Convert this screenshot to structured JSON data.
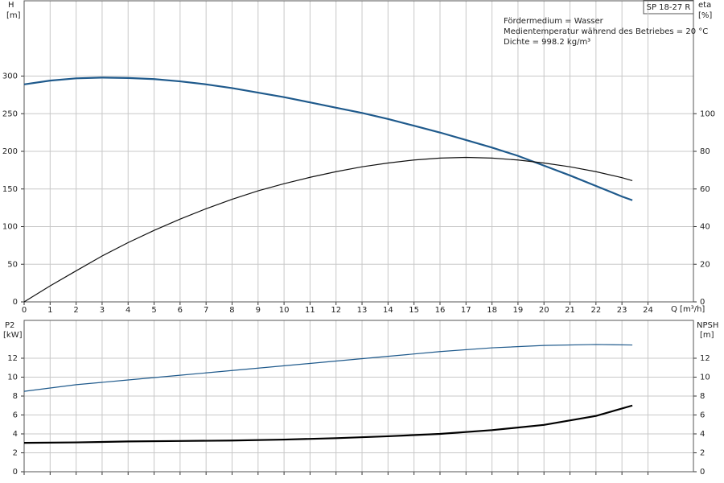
{
  "chart_data": [
    {
      "type": "line",
      "title": "SP 18-27 R",
      "annotations": [
        "Fördermedium = Wasser",
        "Medientemperatur während des Betriebes = 20 °C",
        "Dichte = 998.2 kg/m³"
      ],
      "xlabel": "Q [m³/h]",
      "ylabel": "H",
      "yunit": "[m]",
      "y2label": "eta",
      "y2unit": "[%]",
      "xlim": [
        0,
        25.75
      ],
      "xticks": [
        0,
        1,
        2,
        3,
        4,
        5,
        6,
        7,
        8,
        9,
        10,
        11,
        12,
        13,
        14,
        15,
        16,
        17,
        18,
        19,
        20,
        21,
        22,
        23,
        24
      ],
      "ylim": [
        0,
        400
      ],
      "yticks": [
        0,
        50,
        100,
        150,
        200,
        250,
        300
      ],
      "y2lim": [
        0,
        160
      ],
      "y2ticks": [
        0,
        20,
        40,
        60,
        80,
        100
      ],
      "grid": true,
      "series": [
        {
          "color": "#1f5a8c",
          "width": 2.2,
          "x": [
            0,
            1,
            2,
            3,
            4,
            5,
            6,
            7,
            8,
            9,
            10,
            11,
            12,
            13,
            14,
            15,
            16,
            17,
            18,
            19,
            20,
            21,
            22,
            23,
            23.4
          ],
          "values": [
            289,
            294,
            297,
            298,
            297.5,
            296,
            293,
            289,
            284,
            278,
            272,
            265,
            258,
            251,
            243,
            234,
            225,
            215,
            205,
            194,
            181,
            168,
            154,
            140,
            135
          ]
        },
        {
          "color": "#111111",
          "width": 1.2,
          "axis": "y2",
          "x": [
            0,
            1,
            2,
            3,
            4,
            5,
            6,
            7,
            8,
            9,
            10,
            11,
            12,
            13,
            14,
            15,
            16,
            17,
            18,
            19,
            20,
            21,
            22,
            23,
            23.4
          ],
          "values": [
            0,
            8.5,
            16.5,
            24.4,
            31.5,
            38,
            44,
            49.5,
            54.5,
            59,
            62.8,
            66.2,
            69.2,
            71.8,
            73.8,
            75.4,
            76.4,
            76.8,
            76.4,
            75.4,
            73.8,
            71.8,
            69.2,
            66,
            64.4
          ]
        }
      ]
    },
    {
      "type": "line",
      "ylabel": "P2",
      "yunit": "[kW]",
      "y2label": "NPSH",
      "y2unit": "[m]",
      "ylim": [
        0,
        16
      ],
      "yticks": [
        0,
        2,
        4,
        6,
        8,
        10,
        12
      ],
      "y2lim": [
        0,
        16
      ],
      "y2ticks": [
        0,
        2,
        4,
        6,
        8,
        10,
        12
      ],
      "grid": true,
      "series": [
        {
          "color": "#1f5a8c",
          "width": 1.2,
          "x": [
            0,
            2,
            4,
            6,
            8,
            10,
            12,
            14,
            16,
            18,
            20,
            22,
            23.4
          ],
          "values": [
            8.5,
            9.2,
            9.7,
            10.2,
            10.7,
            11.2,
            11.7,
            12.2,
            12.7,
            13.1,
            13.35,
            13.45,
            13.4
          ]
        },
        {
          "color": "#000000",
          "width": 2.2,
          "axis": "y2",
          "x": [
            0,
            2,
            4,
            6,
            8,
            10,
            12,
            14,
            16,
            18,
            20,
            22,
            23.4
          ],
          "values": [
            3.05,
            3.1,
            3.2,
            3.25,
            3.3,
            3.4,
            3.55,
            3.75,
            4.0,
            4.4,
            4.95,
            5.9,
            7.0
          ]
        }
      ]
    }
  ]
}
